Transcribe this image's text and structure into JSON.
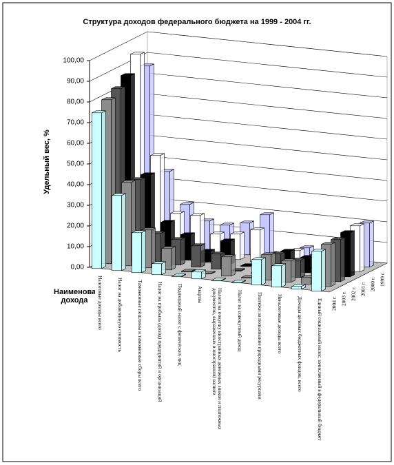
{
  "chart_data": {
    "type": "bar3d",
    "title": "Структура доходов федерального бюджета на 1999 - 2004 гг.",
    "y_label": "Удельный вес, %",
    "x_label": "Наименование дохода",
    "categories": [
      "Налоговые доходы всего",
      "Налог на добавленную стоимость",
      "Таможенные пошлины и таможенные сборы всего",
      "Налог на прибыль (доход) предприятий и организаций",
      "Подоходный налог с физических лиц",
      "Акцизы",
      "Налоги на покупку иностранных денежных знаков и платежных документов, выраженных в иностранной валюте",
      "Налог на совокупный доход",
      "Платежи за пользование природными ресурсами",
      "Неналоговые доходы всего",
      "Доходы целевых бюджетных фондов, всего",
      "Единый социальный налог, зачисляемый в федеральный бюджет"
    ],
    "series": [
      {
        "name": "2004 г.",
        "color": "#ccffff",
        "values": [
          75,
          36,
          19,
          5,
          0,
          3,
          0,
          0,
          12,
          10,
          1,
          19
        ]
      },
      {
        "name": "2003 г.",
        "color": "#8c8c8c",
        "values": [
          79,
          40,
          18,
          10,
          0,
          0,
          9,
          0,
          12,
          10,
          3,
          20
        ]
      },
      {
        "name": "2002 г.",
        "color": "#555555",
        "values": [
          82,
          39,
          14,
          12,
          10,
          7,
          0,
          0,
          10,
          8,
          5,
          20
        ]
      },
      {
        "name": "2001 г.",
        "color": "#000000",
        "values": [
          86,
          39,
          17,
          12,
          5,
          11,
          0,
          1,
          9,
          7,
          7,
          21
        ]
      },
      {
        "name": "2000 г.",
        "color": "#ffffff",
        "values": [
          94,
          46,
          19,
          19,
          11,
          12,
          15,
          0,
          7,
          6,
          5,
          22
        ]
      },
      {
        "name": "1999 г.",
        "color": "#c8c8ff",
        "values": [
          86,
          36,
          21,
          14,
          13,
          15,
          20,
          0,
          6,
          6,
          4,
          21
        ]
      }
    ],
    "ylim": [
      0,
      100
    ],
    "yticks": [
      {
        "value": 0,
        "label": "0,00"
      },
      {
        "value": 10,
        "label": "10,00"
      },
      {
        "value": 20,
        "label": "20,00"
      },
      {
        "value": 30,
        "label": "30,00"
      },
      {
        "value": 40,
        "label": "40,00"
      },
      {
        "value": 50,
        "label": "50,00"
      },
      {
        "value": 60,
        "label": "60,00"
      },
      {
        "value": 70,
        "label": "70,00"
      },
      {
        "value": 80,
        "label": "80,00"
      },
      {
        "value": 90,
        "label": "90,00"
      },
      {
        "value": 100,
        "label": "100,00"
      }
    ],
    "grid": true
  }
}
